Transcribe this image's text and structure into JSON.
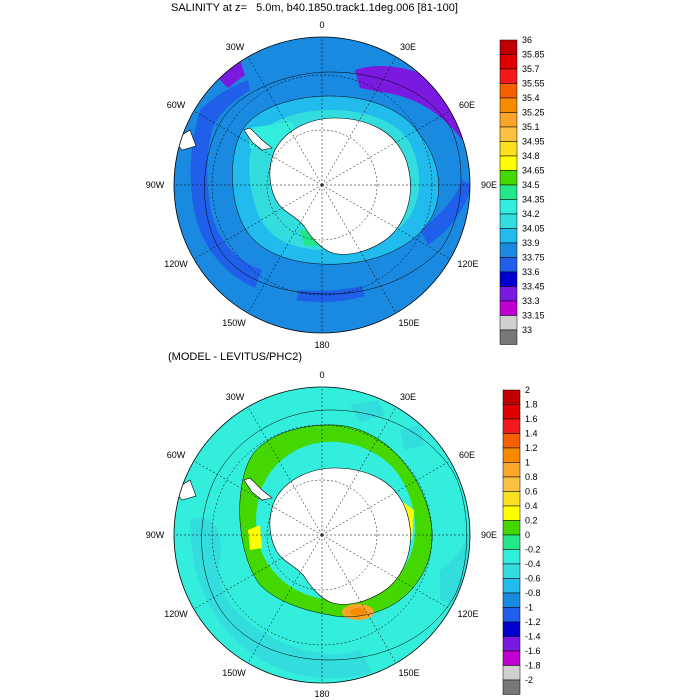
{
  "panels": [
    {
      "title": "SALINITY at z=   5.0m, b40.1850.track1.1deg.006 [81-100]",
      "colorbar_labels": [
        "36",
        "35.85",
        "35.7",
        "35.55",
        "35.4",
        "35.25",
        "35.1",
        "34.95",
        "34.8",
        "34.65",
        "34.5",
        "34.35",
        "34.2",
        "34.05",
        "33.9",
        "33.75",
        "33.6",
        "33.45",
        "33.3",
        "33.15",
        "33"
      ],
      "colorbar_colors": [
        "#c00000",
        "#e00000",
        "#f21a1a",
        "#f56000",
        "#f88a00",
        "#fba52a",
        "#fcc040",
        "#fce020",
        "#ffff00",
        "#44d800",
        "#22e88a",
        "#33eedd",
        "#33dddd",
        "#22bbee",
        "#1a8ae0",
        "#1f5fea",
        "#0000d0",
        "#7a1ae0",
        "#c000d0",
        "#d0d0d0",
        "#787878"
      ],
      "lon_labels": [
        "0",
        "30E",
        "60E",
        "90E",
        "120E",
        "150E",
        "180",
        "150W",
        "120W",
        "90W",
        "60W",
        "30W"
      ]
    },
    {
      "title": "(MODEL - LEVITUS/PHC2)",
      "colorbar_labels": [
        "2",
        "1.8",
        "1.6",
        "1.4",
        "1.2",
        "1",
        "0.8",
        "0.6",
        "0.4",
        "0.2",
        "0",
        "-0.2",
        "-0.4",
        "-0.6",
        "-0.8",
        "-1",
        "-1.2",
        "-1.4",
        "-1.6",
        "-1.8",
        "-2"
      ],
      "colorbar_colors": [
        "#c00000",
        "#e00000",
        "#f21a1a",
        "#f56000",
        "#f88a00",
        "#fba52a",
        "#fcc040",
        "#fce020",
        "#ffff00",
        "#44d800",
        "#22e88a",
        "#33eedd",
        "#33dddd",
        "#22bbee",
        "#1a8ae0",
        "#1f5fea",
        "#0000d0",
        "#7a1ae0",
        "#c000d0",
        "#d0d0d0",
        "#787878"
      ],
      "lon_labels": [
        "0",
        "30E",
        "60E",
        "90E",
        "120E",
        "150E",
        "180",
        "150W",
        "120W",
        "90W",
        "60W",
        "30W"
      ]
    }
  ]
}
